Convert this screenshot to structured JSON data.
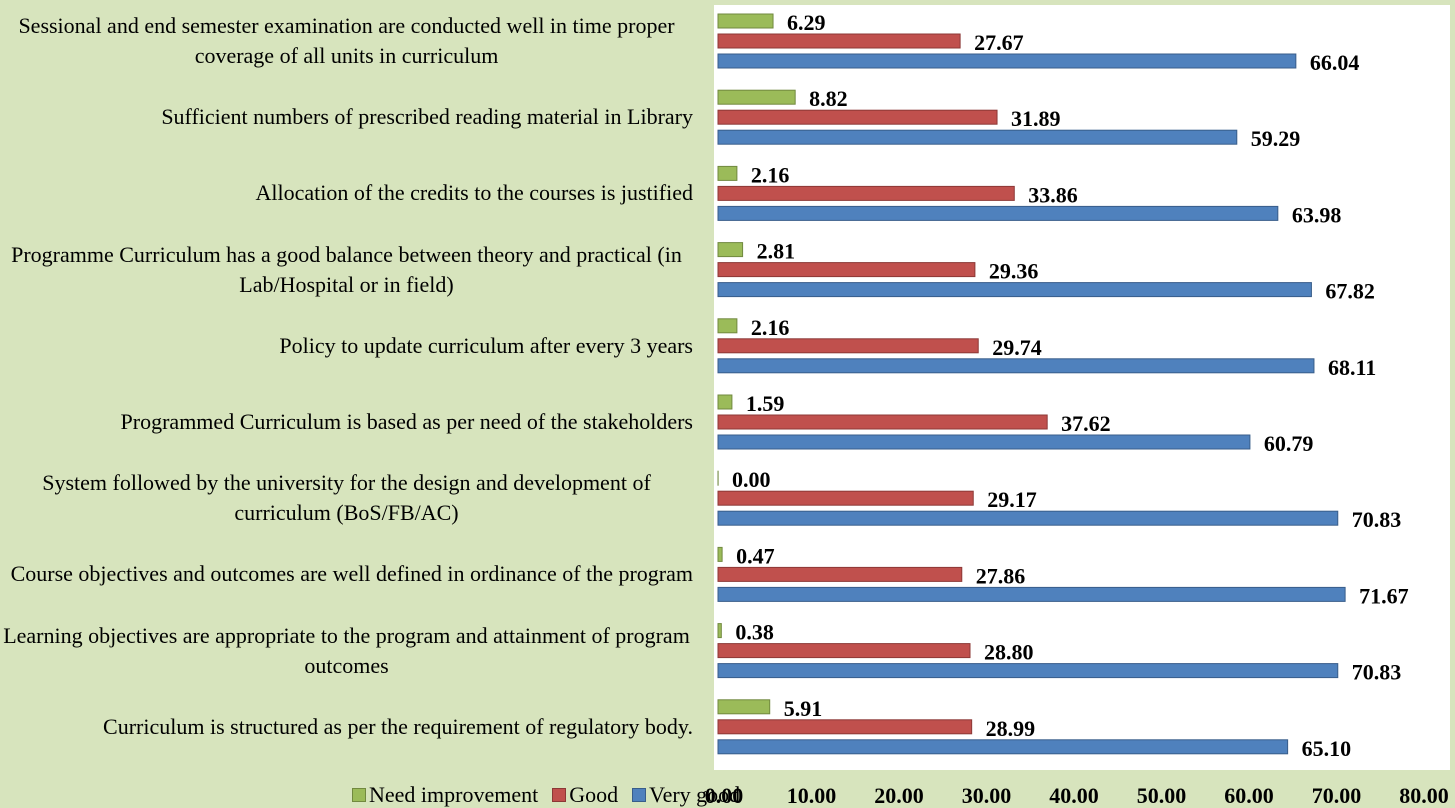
{
  "chart_data": {
    "type": "hbar",
    "categories": [
      "Sessional and end semester examination are conducted well in time proper coverage of all units in curriculum",
      "Sufficient numbers of prescribed reading material in Library",
      "Allocation of the credits to the courses is justified",
      "Programme Curriculum has a good balance between theory and practical (in Lab/Hospital or in field)",
      "Policy to update curriculum after every 3 years",
      "Programmed Curriculum is based as per need of the stakeholders",
      "System followed by the university for the design and development of curriculum (BoS/FB/AC)",
      "Course objectives and outcomes are well defined in ordinance of the program",
      "Learning objectives are appropriate to the program and attainment of program outcomes",
      "Curriculum is structured as per the requirement of regulatory body."
    ],
    "series": [
      {
        "name": "Need improvement",
        "color": "#9bbb59",
        "values": [
          6.29,
          8.82,
          2.16,
          2.81,
          2.16,
          1.59,
          0,
          0.47,
          0.38,
          5.91
        ],
        "value_labels": [
          "6.29",
          "8.82",
          "2.16",
          "2.81",
          "2.16",
          "1.59",
          "0.00",
          "0.47",
          "0.38",
          "5.91"
        ]
      },
      {
        "name": "Good",
        "color": "#c0504d",
        "values": [
          27.67,
          31.89,
          33.86,
          29.36,
          29.74,
          37.62,
          29.17,
          27.86,
          28.8,
          28.99
        ],
        "value_labels": [
          "27.67",
          "31.89",
          "33.86",
          "29.36",
          "29.74",
          "37.62",
          "29.17",
          "27.86",
          "28.80",
          "28.99"
        ]
      },
      {
        "name": "Very good",
        "color": "#4f81bd",
        "values": [
          66.04,
          59.29,
          63.98,
          67.82,
          68.11,
          60.79,
          70.83,
          71.67,
          70.83,
          65.1
        ],
        "value_labels": [
          "66.04",
          "59.29",
          "63.98",
          "67.82",
          "68.11",
          "60.79",
          "70.83",
          "71.67",
          "70.83",
          "65.10"
        ]
      }
    ],
    "xlim": [
      0,
      80
    ],
    "xticks": [
      {
        "value": 0,
        "label": "0.00"
      },
      {
        "value": 10,
        "label": "10.00"
      },
      {
        "value": 20,
        "label": "20.00"
      },
      {
        "value": 30,
        "label": "30.00"
      },
      {
        "value": 40,
        "label": "40.00"
      },
      {
        "value": 50,
        "label": "50.00"
      },
      {
        "value": 60,
        "label": "60.00"
      },
      {
        "value": 70,
        "label": "70.00"
      },
      {
        "value": 80,
        "label": "80.00"
      }
    ],
    "legend": "bottom-left"
  }
}
